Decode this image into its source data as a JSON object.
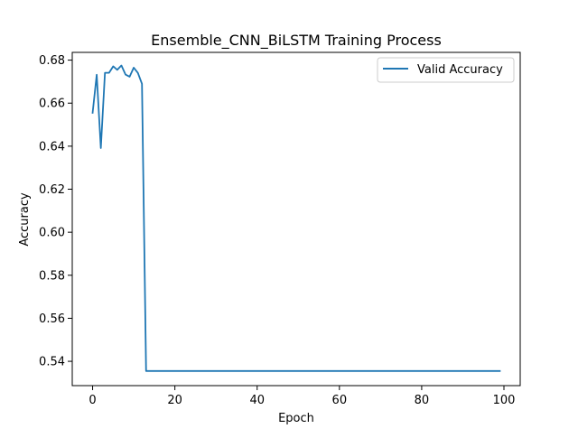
{
  "chart_data": {
    "type": "line",
    "title": "Ensemble_CNN_BiLSTM Training Process",
    "xlabel": "Epoch",
    "ylabel": "Accuracy",
    "xlim": [
      -4.95,
      103.95
    ],
    "ylim": [
      0.5287,
      0.6836
    ],
    "grid": false,
    "legend_position": "upper-right",
    "x_ticks": [
      0,
      20,
      40,
      60,
      80,
      100
    ],
    "y_ticks": [
      0.54,
      0.56,
      0.58,
      0.6,
      0.62,
      0.64,
      0.66,
      0.68
    ],
    "x_tick_labels": [
      "0",
      "20",
      "40",
      "60",
      "80",
      "100"
    ],
    "y_tick_labels": [
      "0.54",
      "0.56",
      "0.58",
      "0.60",
      "0.62",
      "0.64",
      "0.66",
      "0.68"
    ],
    "series": [
      {
        "name": "Valid Accuracy",
        "color": "#1f77b4",
        "x": [
          0,
          1,
          2,
          3,
          4,
          5,
          6,
          7,
          8,
          9,
          10,
          11,
          12,
          13,
          14,
          15,
          16,
          17,
          18,
          19,
          20,
          21,
          22,
          23,
          24,
          25,
          26,
          27,
          28,
          29,
          30,
          31,
          32,
          33,
          34,
          35,
          36,
          37,
          38,
          39,
          40,
          41,
          42,
          43,
          44,
          45,
          46,
          47,
          48,
          49,
          50,
          51,
          52,
          53,
          54,
          55,
          56,
          57,
          58,
          59,
          60,
          61,
          62,
          63,
          64,
          65,
          66,
          67,
          68,
          69,
          70,
          71,
          72,
          73,
          74,
          75,
          76,
          77,
          78,
          79,
          80,
          81,
          82,
          83,
          84,
          85,
          86,
          87,
          88,
          89,
          90,
          91,
          92,
          93,
          94,
          95,
          96,
          97,
          98,
          99
        ],
        "y": [
          0.6555,
          0.6732,
          0.6391,
          0.6741,
          0.6741,
          0.6771,
          0.6755,
          0.6775,
          0.6733,
          0.6723,
          0.6765,
          0.6741,
          0.669,
          0.5355,
          0.5355,
          0.5355,
          0.5355,
          0.5355,
          0.5355,
          0.5355,
          0.5355,
          0.5355,
          0.5355,
          0.5355,
          0.5355,
          0.5355,
          0.5355,
          0.5355,
          0.5355,
          0.5355,
          0.5355,
          0.5355,
          0.5355,
          0.5355,
          0.5355,
          0.5355,
          0.5355,
          0.5355,
          0.5355,
          0.5355,
          0.5355,
          0.5355,
          0.5355,
          0.5355,
          0.5355,
          0.5355,
          0.5355,
          0.5355,
          0.5355,
          0.5355,
          0.5355,
          0.5355,
          0.5355,
          0.5355,
          0.5355,
          0.5355,
          0.5355,
          0.5355,
          0.5355,
          0.5355,
          0.5355,
          0.5355,
          0.5355,
          0.5355,
          0.5355,
          0.5355,
          0.5355,
          0.5355,
          0.5355,
          0.5355,
          0.5355,
          0.5355,
          0.5355,
          0.5355,
          0.5355,
          0.5355,
          0.5355,
          0.5355,
          0.5355,
          0.5355,
          0.5355,
          0.5355,
          0.5355,
          0.5355,
          0.5355,
          0.5355,
          0.5355,
          0.5355,
          0.5355,
          0.5355,
          0.5355,
          0.5355,
          0.5355,
          0.5355,
          0.5355,
          0.5355,
          0.5355,
          0.5355,
          0.5355,
          0.5355
        ]
      }
    ]
  }
}
